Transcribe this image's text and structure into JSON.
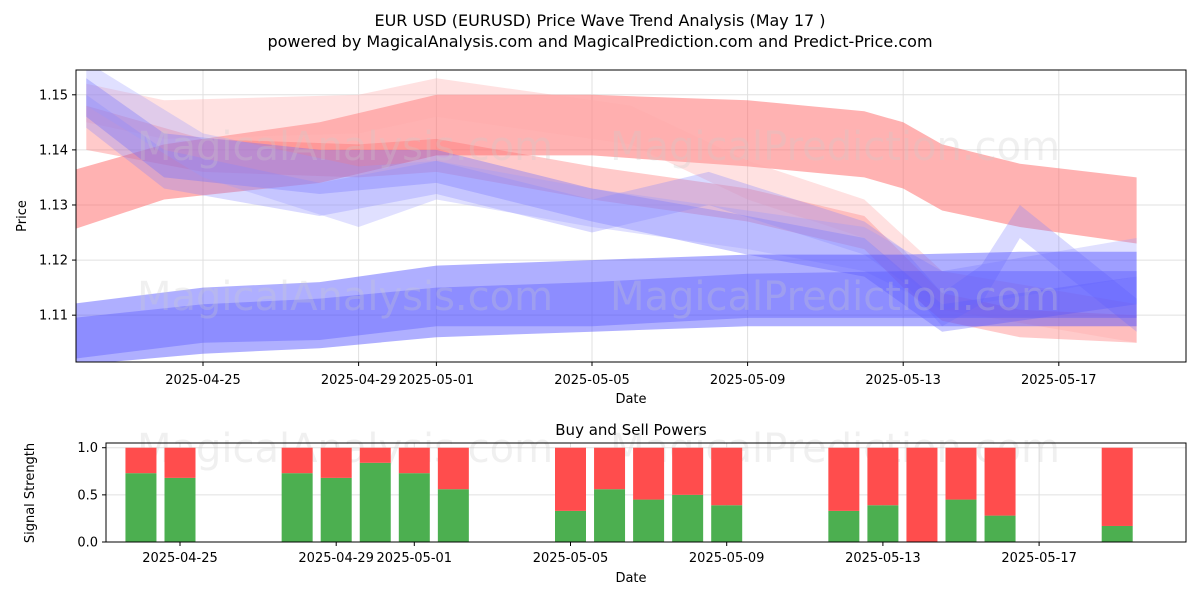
{
  "title": "EUR USD (EURUSD) Price Wave Trend Analysis (May 17 )",
  "subtitle": "powered by MagicalAnalysis.com and MagicalPrediction.com and Predict-Price.com",
  "watermarks": [
    "MagicalAnalysis.com",
    "MagicalPrediction.com"
  ],
  "colors": {
    "buy": "#4caf50",
    "sell": "#ff4d4d",
    "red_band": "#ff6666",
    "blue_band": "#4d4dff",
    "grid": "#e0e0e0"
  },
  "chart_data": [
    {
      "type": "area",
      "name": "price-wave-chart",
      "xlabel": "Date",
      "ylabel": "Price",
      "x_range": [
        "2025-04-21",
        "2025-05-19"
      ],
      "ylim": [
        1.1015,
        1.1545
      ],
      "yticks": [
        1.11,
        1.12,
        1.13,
        1.14,
        1.15
      ],
      "ytick_labels": [
        "1.11",
        "1.12",
        "1.13",
        "1.14",
        "1.15"
      ],
      "xticks": [
        "2025-04-25",
        "2025-04-29",
        "2025-05-01",
        "2025-05-05",
        "2025-05-09",
        "2025-05-13",
        "2025-05-17"
      ],
      "grid": true,
      "series": [
        {
          "name": "red-wide-band",
          "color": "#ff6666",
          "opacity": 0.5,
          "x": [
            "2025-04-21",
            "2025-04-24",
            "2025-04-28",
            "2025-05-01",
            "2025-05-05",
            "2025-05-09",
            "2025-05-12",
            "2025-05-13",
            "2025-05-14",
            "2025-05-16",
            "2025-05-19"
          ],
          "upper": [
            1.135,
            1.141,
            1.145,
            1.15,
            1.15,
            1.149,
            1.147,
            1.145,
            1.141,
            1.1375,
            1.135
          ],
          "lower": [
            1.124,
            1.131,
            1.134,
            1.139,
            1.139,
            1.137,
            1.135,
            1.133,
            1.129,
            1.126,
            1.123
          ]
        },
        {
          "name": "red-narrow-band",
          "color": "#ff6666",
          "opacity": 0.35,
          "x": [
            "2025-04-22",
            "2025-04-25",
            "2025-04-29",
            "2025-05-01",
            "2025-05-05",
            "2025-05-09",
            "2025-05-12",
            "2025-05-13",
            "2025-05-14",
            "2025-05-16",
            "2025-05-19"
          ],
          "upper": [
            1.148,
            1.142,
            1.141,
            1.142,
            1.137,
            1.133,
            1.128,
            1.121,
            1.114,
            1.111,
            1.11
          ],
          "lower": [
            1.14,
            1.136,
            1.135,
            1.136,
            1.131,
            1.127,
            1.122,
            1.115,
            1.109,
            1.106,
            1.105
          ]
        },
        {
          "name": "red-light-wave",
          "color": "#ffaaaa",
          "opacity": 0.35,
          "x": [
            "2025-04-22",
            "2025-04-24",
            "2025-04-29",
            "2025-05-01",
            "2025-05-06",
            "2025-05-09",
            "2025-05-12",
            "2025-05-14",
            "2025-05-19"
          ],
          "upper": [
            1.152,
            1.149,
            1.15,
            1.153,
            1.148,
            1.138,
            1.131,
            1.118,
            1.112
          ],
          "lower": [
            1.145,
            1.142,
            1.143,
            1.146,
            1.141,
            1.131,
            1.124,
            1.111,
            1.105
          ]
        },
        {
          "name": "blue-wave-1",
          "color": "#6666ff",
          "opacity": 0.35,
          "x": [
            "2025-04-22",
            "2025-04-24",
            "2025-04-28",
            "2025-05-01",
            "2025-05-05",
            "2025-05-09",
            "2025-05-12",
            "2025-05-13",
            "2025-05-14",
            "2025-05-16",
            "2025-05-19"
          ],
          "upper": [
            1.153,
            1.143,
            1.14,
            1.14,
            1.133,
            1.128,
            1.124,
            1.118,
            1.112,
            1.114,
            1.117
          ],
          "lower": [
            1.146,
            1.135,
            1.132,
            1.134,
            1.127,
            1.121,
            1.117,
            1.112,
            1.107,
            1.109,
            1.112
          ]
        },
        {
          "name": "blue-wave-2",
          "color": "#8080ff",
          "opacity": 0.3,
          "x": [
            "2025-04-22",
            "2025-04-24",
            "2025-04-28",
            "2025-05-01",
            "2025-05-05",
            "2025-05-08",
            "2025-05-12",
            "2025-05-13",
            "2025-05-14",
            "2025-05-15",
            "2025-05-16",
            "2025-05-19"
          ],
          "upper": [
            1.15,
            1.14,
            1.134,
            1.138,
            1.131,
            1.136,
            1.127,
            1.122,
            1.114,
            1.119,
            1.13,
            1.113
          ],
          "lower": [
            1.144,
            1.133,
            1.128,
            1.132,
            1.125,
            1.13,
            1.121,
            1.116,
            1.108,
            1.112,
            1.124,
            1.107
          ]
        },
        {
          "name": "blue-wave-3",
          "color": "#9999ff",
          "opacity": 0.3,
          "x": [
            "2025-04-22",
            "2025-04-25",
            "2025-04-29",
            "2025-05-01",
            "2025-05-05",
            "2025-05-09",
            "2025-05-12",
            "2025-05-14",
            "2025-05-19"
          ],
          "upper": [
            1.156,
            1.143,
            1.137,
            1.138,
            1.133,
            1.129,
            1.126,
            1.118,
            1.124
          ],
          "lower": [
            1.148,
            1.135,
            1.126,
            1.131,
            1.126,
            1.122,
            1.118,
            1.111,
            1.117
          ]
        },
        {
          "name": "blue-wide-band",
          "color": "#4d4dff",
          "opacity": 0.45,
          "x": [
            "2025-04-21",
            "2025-04-25",
            "2025-04-28",
            "2025-05-01",
            "2025-05-05",
            "2025-05-09",
            "2025-05-13",
            "2025-05-16",
            "2025-05-19"
          ],
          "upper": [
            1.1115,
            1.115,
            1.116,
            1.119,
            1.12,
            1.121,
            1.121,
            1.1215,
            1.1215
          ],
          "lower": [
            1.1005,
            1.103,
            1.104,
            1.106,
            1.107,
            1.108,
            1.108,
            1.108,
            1.108
          ]
        },
        {
          "name": "blue-narrow-band",
          "color": "#4d4dff",
          "opacity": 0.35,
          "x": [
            "2025-04-21",
            "2025-04-25",
            "2025-04-28",
            "2025-05-01",
            "2025-05-05",
            "2025-05-09",
            "2025-05-13",
            "2025-05-16",
            "2025-05-19"
          ],
          "upper": [
            1.109,
            1.112,
            1.113,
            1.115,
            1.116,
            1.1175,
            1.118,
            1.118,
            1.118
          ],
          "lower": [
            1.1015,
            1.105,
            1.1055,
            1.108,
            1.108,
            1.1095,
            1.1095,
            1.1095,
            1.1095
          ]
        }
      ]
    },
    {
      "type": "bar",
      "name": "buy-sell-powers-chart",
      "title": "Buy and Sell Powers",
      "xlabel": "Date",
      "ylabel": "Signal Strength",
      "ylim": [
        0,
        1.05
      ],
      "yticks": [
        0.0,
        0.5,
        1.0
      ],
      "ytick_labels": [
        "0.0",
        "0.5",
        "1.0"
      ],
      "xticks": [
        "2025-04-25",
        "2025-04-29",
        "2025-05-01",
        "2025-05-05",
        "2025-05-09",
        "2025-05-13",
        "2025-05-17"
      ],
      "x": [
        "2025-04-24",
        "2025-04-25",
        "2025-04-28",
        "2025-04-29",
        "2025-04-30",
        "2025-05-01",
        "2025-05-02",
        "2025-05-05",
        "2025-05-06",
        "2025-05-07",
        "2025-05-08",
        "2025-05-09",
        "2025-05-12",
        "2025-05-13",
        "2025-05-14",
        "2025-05-15",
        "2025-05-16",
        "2025-05-19"
      ],
      "series": [
        {
          "name": "Buy",
          "color": "#4caf50",
          "values": [
            0.73,
            0.68,
            0.73,
            0.68,
            0.84,
            0.73,
            0.56,
            0.33,
            0.56,
            0.45,
            0.5,
            0.39,
            0.33,
            0.39,
            0.0,
            0.45,
            0.28,
            0.17
          ]
        },
        {
          "name": "Sell",
          "color": "#ff4d4d",
          "values": [
            0.27,
            0.32,
            0.27,
            0.32,
            0.16,
            0.27,
            0.44,
            0.67,
            0.44,
            0.55,
            0.5,
            0.61,
            0.67,
            0.61,
            1.0,
            0.55,
            0.72,
            0.83
          ]
        }
      ]
    }
  ]
}
